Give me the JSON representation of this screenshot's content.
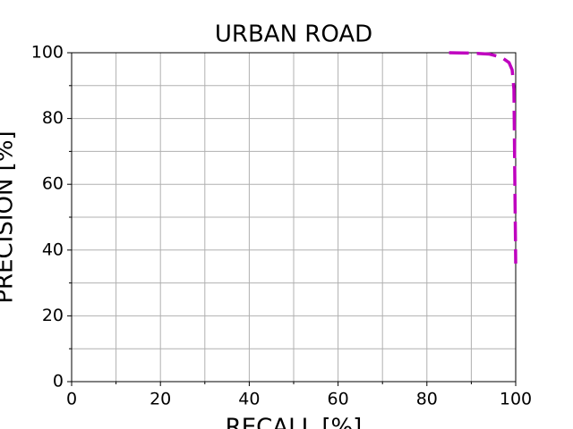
{
  "chart_data": {
    "type": "line",
    "title": "URBAN ROAD",
    "x_label": "RECALL [%]",
    "y_label": "PRECISION [%]",
    "x": [
      85,
      90,
      94,
      96.8,
      98.5,
      99.2,
      99.6,
      99.8,
      100
    ],
    "values": [
      100,
      99.9,
      99.6,
      98.6,
      97,
      94.8,
      88.9,
      61.7,
      35.9
    ],
    "color": "#bf00bf",
    "xlim": [
      0,
      100
    ],
    "ylim": [
      0,
      100
    ],
    "xticks": [
      0,
      20,
      40,
      60,
      80,
      100
    ],
    "yticks": [
      0,
      20,
      40,
      60,
      80,
      100
    ],
    "xminor": [
      10,
      30,
      50,
      70,
      90
    ],
    "yminor": [
      10,
      30,
      50,
      70,
      90
    ],
    "grid": true
  }
}
